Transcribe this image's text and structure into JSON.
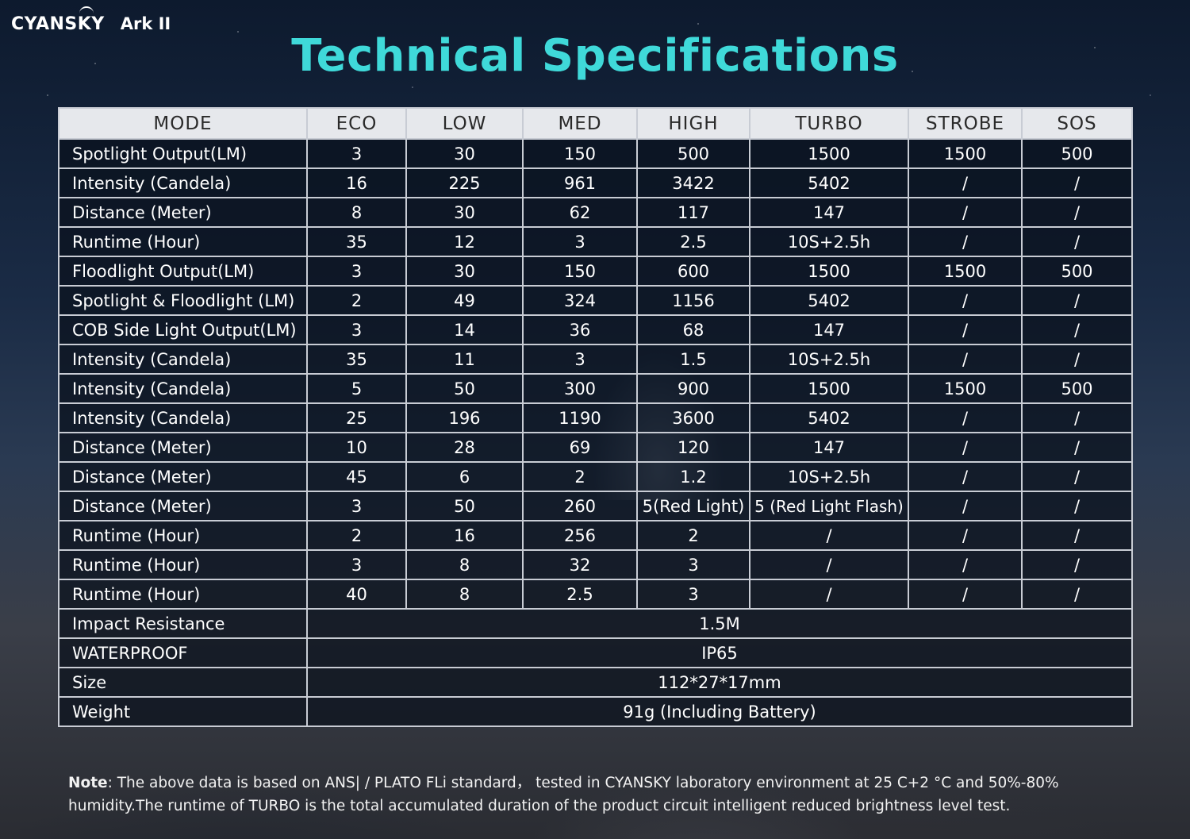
{
  "brand": {
    "logo": "CYANSKY",
    "model": "Ark II"
  },
  "title": "Technical Specifications",
  "table": {
    "headers": [
      "MODE",
      "ECO",
      "LOW",
      "MED",
      "HIGH",
      "TURBO",
      "STROBE",
      "SOS"
    ],
    "rows": [
      [
        "Spotlight Output(LM)",
        "3",
        "30",
        "150",
        "500",
        "1500",
        "1500",
        "500"
      ],
      [
        "Intensity (Candela)",
        "16",
        "225",
        "961",
        "3422",
        "5402",
        "/",
        "/"
      ],
      [
        "Distance (Meter)",
        "8",
        "30",
        "62",
        "117",
        "147",
        "/",
        "/"
      ],
      [
        "Runtime (Hour)",
        "35",
        "12",
        "3",
        "2.5",
        "10S+2.5h",
        "/",
        "/"
      ],
      [
        "Floodlight Output(LM)",
        "3",
        "30",
        "150",
        "600",
        "1500",
        "1500",
        "500"
      ],
      [
        "Spotlight & Floodlight (LM)",
        "2",
        "49",
        "324",
        "1156",
        "5402",
        "/",
        "/"
      ],
      [
        "COB Side Light Output(LM)",
        "3",
        "14",
        "36",
        "68",
        "147",
        "/",
        "/"
      ],
      [
        "Intensity (Candela)",
        "35",
        "11",
        "3",
        "1.5",
        "10S+2.5h",
        "/",
        "/"
      ],
      [
        "Intensity (Candela)",
        "5",
        "50",
        "300",
        "900",
        "1500",
        "1500",
        "500"
      ],
      [
        "Intensity (Candela)",
        "25",
        "196",
        "1190",
        "3600",
        "5402",
        "/",
        "/"
      ],
      [
        "Distance (Meter)",
        "10",
        "28",
        "69",
        "120",
        "147",
        "/",
        "/"
      ],
      [
        "Distance (Meter)",
        "45",
        "6",
        "2",
        "1.2",
        "10S+2.5h",
        "/",
        "/"
      ],
      [
        "Distance (Meter)",
        "3",
        "50",
        "260",
        "5(Red Light)",
        "5 (Red Light Flash)",
        "/",
        "/"
      ],
      [
        "Runtime (Hour)",
        "2",
        "16",
        "256",
        "2",
        "/",
        "/",
        "/"
      ],
      [
        "Runtime (Hour)",
        "3",
        "8",
        "32",
        "3",
        "/",
        "/",
        "/"
      ],
      [
        "Runtime (Hour)",
        "40",
        "8",
        "2.5",
        "3",
        "/",
        "/",
        "/"
      ]
    ],
    "span_rows": [
      {
        "label": "Impact Resistance",
        "value": "1.5M"
      },
      {
        "label": "WATERPROOF",
        "value": "IP65"
      },
      {
        "label": "Size",
        "value": "112*27*17mm"
      },
      {
        "label": "Weight",
        "value": "91g (Including Battery)"
      }
    ]
  },
  "note": {
    "prefix": "Note",
    "text": ": The above data is based on ANS| / PLATO FLi standard，  tested in CYANSKY laboratory environment at 25 C+2 °C and 50%-80% humidity.The runtime of TURBO is the total accumulated duration of the product circuit intelligent reduced brightness level test."
  },
  "colors": {
    "title": "#3fd9d9",
    "header_bg": "#e6e8ec",
    "cell_bg": "#0a101c"
  }
}
